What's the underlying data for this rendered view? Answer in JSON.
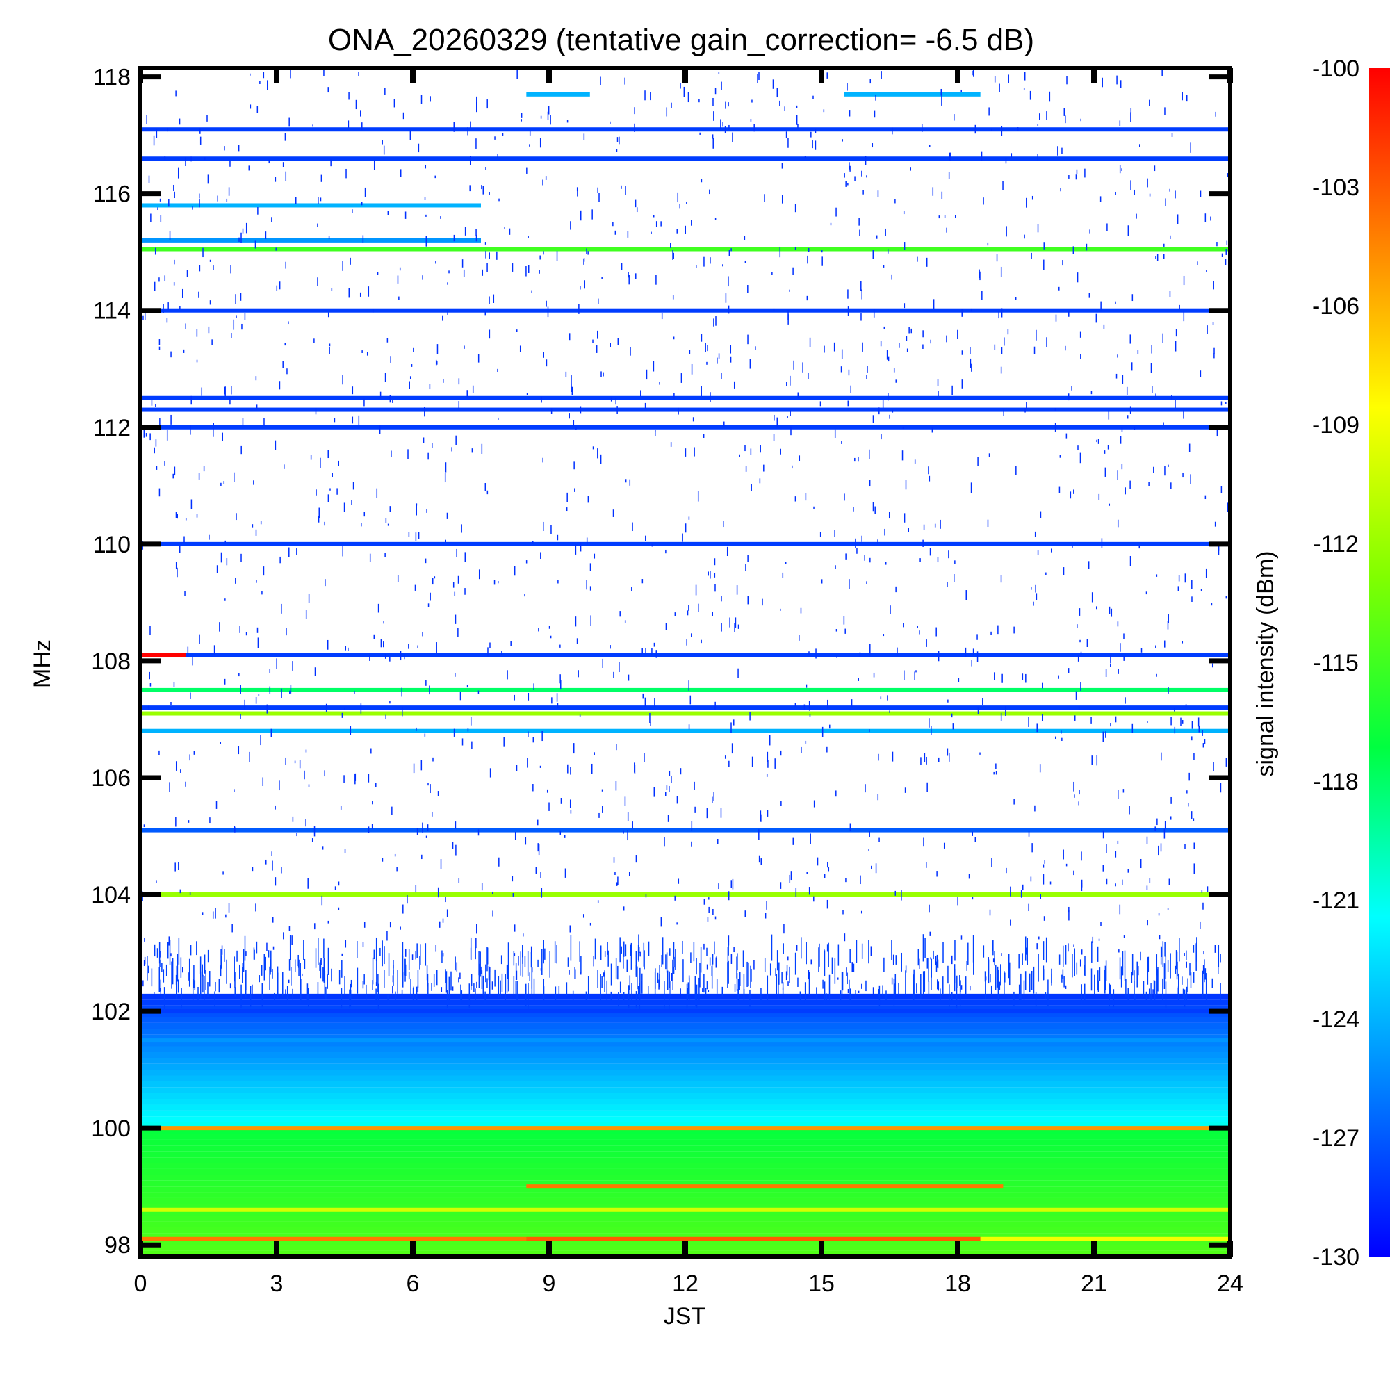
{
  "chart_data": {
    "type": "heatmap",
    "title": "ONA_20260329 (tentative gain_correction= -6.5 dB)",
    "xlabel": "JST",
    "ylabel": "MHz",
    "colorbar_label": "signal intensity (dBm)",
    "xlim": [
      0,
      24
    ],
    "ylim": [
      97.8,
      118.15
    ],
    "x_ticks": [
      0,
      3,
      6,
      9,
      12,
      15,
      18,
      21,
      24
    ],
    "x_tick_labels": [
      "0",
      "3",
      "6",
      "9",
      "12",
      "15",
      "18",
      "21",
      "24"
    ],
    "y_ticks": [
      98,
      100,
      102,
      104,
      106,
      108,
      110,
      112,
      114,
      116,
      118
    ],
    "y_tick_labels": [
      "98",
      "100",
      "102",
      "104",
      "106",
      "108",
      "110",
      "112",
      "114",
      "116",
      "118"
    ],
    "colorbar_range": [
      -130,
      -100
    ],
    "colorbar_ticks": [
      -100,
      -103,
      -106,
      -109,
      -112,
      -115,
      -118,
      -121,
      -124,
      -127,
      -130
    ],
    "colorbar_tick_labels": [
      "-100",
      "-103",
      "-106",
      "-109",
      "-112",
      "-115",
      "-118",
      "-121",
      "-124",
      "-127",
      "-130"
    ],
    "colormap": [
      "#0000ff",
      "#0080ff",
      "#00ffff",
      "#00ff40",
      "#80ff00",
      "#ffff00",
      "#ff8000",
      "#ff0000"
    ],
    "bands": [
      {
        "freq": 98.1,
        "from": 0,
        "to": 8.5,
        "dbm": -104
      },
      {
        "freq": 98.1,
        "from": 8.5,
        "to": 18.5,
        "dbm": -103
      },
      {
        "freq": 98.1,
        "from": 18.5,
        "to": 24,
        "dbm": -109
      },
      {
        "freq": 98.6,
        "from": 0,
        "to": 24,
        "dbm": -110
      },
      {
        "freq": 99.0,
        "from": 8.5,
        "to": 19,
        "dbm": -104
      },
      {
        "freq": 100.0,
        "from": 0,
        "to": 24,
        "dbm": -105
      },
      {
        "freq": 101.5,
        "from": 0,
        "to": 24,
        "dbm": -125
      },
      {
        "freq": 102.0,
        "from": 0,
        "to": 24,
        "dbm": -128
      },
      {
        "freq": 104.0,
        "from": 0,
        "to": 24,
        "dbm": -112
      },
      {
        "freq": 105.1,
        "from": 0,
        "to": 24,
        "dbm": -127
      },
      {
        "freq": 106.8,
        "from": 0,
        "to": 24,
        "dbm": -124
      },
      {
        "freq": 107.1,
        "from": 0,
        "to": 24,
        "dbm": -112
      },
      {
        "freq": 107.2,
        "from": 0,
        "to": 24,
        "dbm": -128
      },
      {
        "freq": 107.5,
        "from": 0,
        "to": 24,
        "dbm": -118
      },
      {
        "freq": 108.1,
        "from": 0,
        "to": 1,
        "dbm": -100
      },
      {
        "freq": 108.1,
        "from": 1,
        "to": 24,
        "dbm": -128
      },
      {
        "freq": 110.0,
        "from": 0,
        "to": 24,
        "dbm": -128
      },
      {
        "freq": 112.0,
        "from": 0,
        "to": 24,
        "dbm": -128
      },
      {
        "freq": 112.3,
        "from": 0,
        "to": 24,
        "dbm": -128
      },
      {
        "freq": 112.5,
        "from": 0,
        "to": 24,
        "dbm": -128
      },
      {
        "freq": 114.0,
        "from": 0,
        "to": 24,
        "dbm": -128
      },
      {
        "freq": 115.05,
        "from": 0,
        "to": 24,
        "dbm": -115
      },
      {
        "freq": 115.2,
        "from": 0,
        "to": 7.5,
        "dbm": -125
      },
      {
        "freq": 115.8,
        "from": 0,
        "to": 7.5,
        "dbm": -124
      },
      {
        "freq": 116.6,
        "from": 0,
        "to": 24,
        "dbm": -128
      },
      {
        "freq": 117.1,
        "from": 0,
        "to": 24,
        "dbm": -128
      },
      {
        "freq": 117.7,
        "from": 8.5,
        "to": 9.9,
        "dbm": -124
      },
      {
        "freq": 117.7,
        "from": 15.5,
        "to": 18.5,
        "dbm": -124
      }
    ]
  }
}
